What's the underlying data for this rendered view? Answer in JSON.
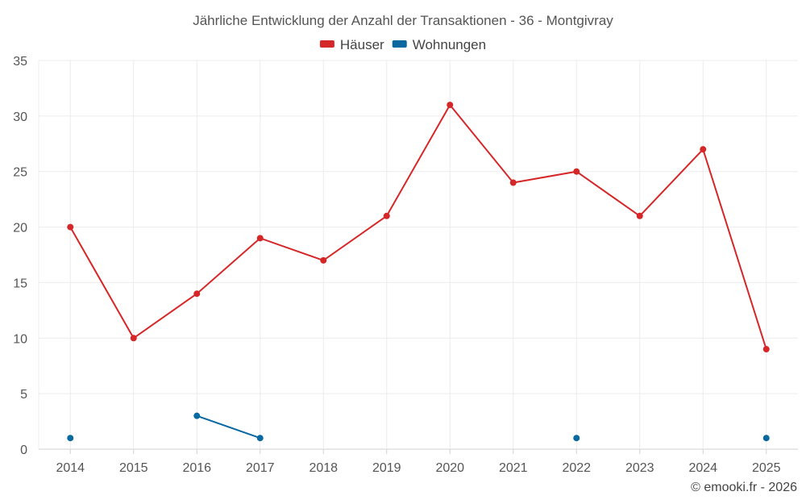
{
  "chart_data": {
    "type": "line",
    "title": "Jährliche Entwicklung der Anzahl der Transaktionen - 36 - Montgivray",
    "categories": [
      "2014",
      "2015",
      "2016",
      "2017",
      "2018",
      "2019",
      "2020",
      "2021",
      "2022",
      "2023",
      "2024",
      "2025"
    ],
    "ylim": [
      0,
      35
    ],
    "yticks": [
      0,
      5,
      10,
      15,
      20,
      25,
      30,
      35
    ],
    "grid": true,
    "legend_position": "top-center",
    "xlabel": "",
    "ylabel": "",
    "series": [
      {
        "name": "Häuser",
        "color": "#d62728",
        "values": [
          20,
          10,
          14,
          19,
          17,
          21,
          31,
          24,
          25,
          21,
          27,
          9
        ]
      },
      {
        "name": "Wohnungen",
        "color": "#0868a0",
        "values": [
          1,
          null,
          3,
          1,
          null,
          null,
          null,
          null,
          1,
          null,
          null,
          1
        ]
      }
    ]
  },
  "credit": "© emooki.fr - 2026"
}
